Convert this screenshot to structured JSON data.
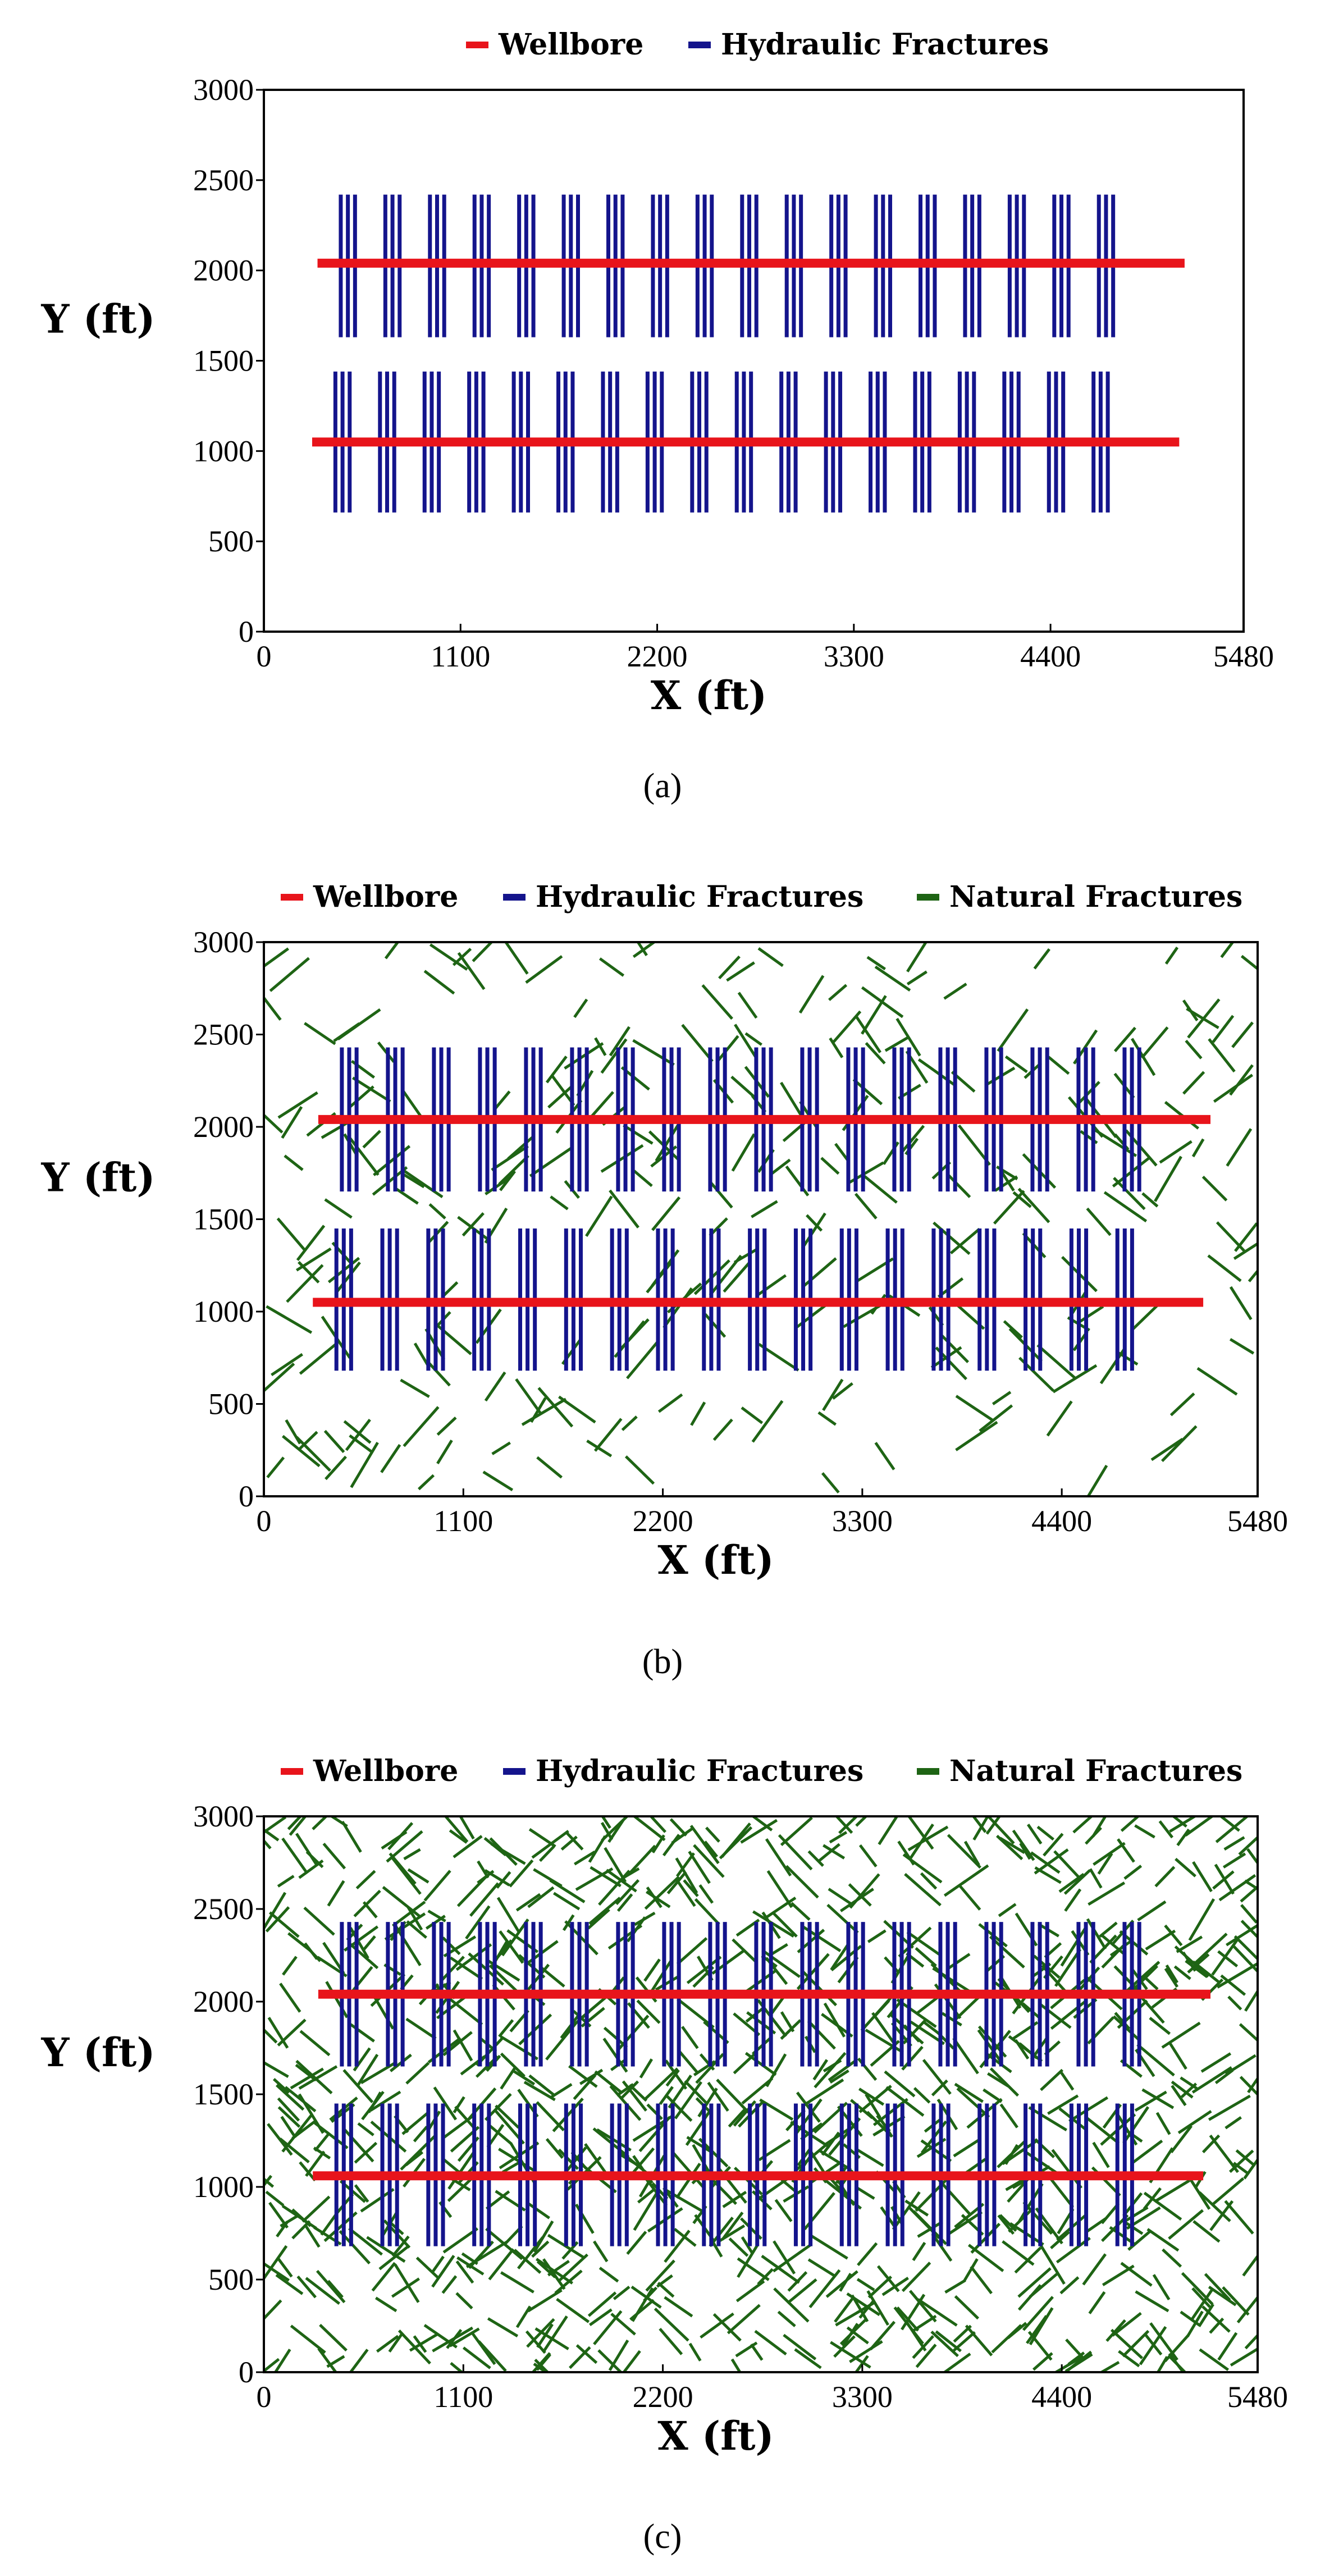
{
  "figure": {
    "captions": [
      "(a)",
      "(b)",
      "(c)"
    ]
  },
  "colors": {
    "wellbore": "#e8141b",
    "hydraulic": "#14148c",
    "natural": "#1e6414"
  },
  "chart_data": [
    {
      "type": "line",
      "panel": "a",
      "caption": "(a)",
      "xlabel": "X (ft)",
      "ylabel": "Y (ft)",
      "xlim": [
        0,
        5480
      ],
      "ylim": [
        0,
        3000
      ],
      "xticks": [
        "0",
        "1100",
        "2200",
        "3300",
        "4400",
        "5480"
      ],
      "yticks": [
        "0",
        "500",
        "1000",
        "1500",
        "2000",
        "2500",
        "3000"
      ],
      "legend": [
        "Wellbore",
        "Hydraulic Fractures"
      ],
      "wellbores": [
        {
          "y": 2040,
          "x_start": 300,
          "x_end": 5150
        },
        {
          "y": 1050,
          "x_start": 270,
          "x_end": 5120
        }
      ],
      "hydraulic_fractures": [
        {
          "y_min": 1630,
          "y_max": 2420,
          "stages": 18,
          "per_stage": 3,
          "x_start": 430,
          "x_end": 4920
        },
        {
          "y_min": 660,
          "y_max": 1440,
          "stages": 18,
          "per_stage": 3,
          "x_start": 400,
          "x_end": 4890
        }
      ],
      "natural_fracture_count": 0
    },
    {
      "type": "line",
      "panel": "b",
      "caption": "(b)",
      "xlabel": "X (ft)",
      "ylabel": "Y (ft)",
      "xlim": [
        0,
        5480
      ],
      "ylim": [
        0,
        3000
      ],
      "xticks": [
        "0",
        "1100",
        "2200",
        "3300",
        "4400",
        "5480"
      ],
      "yticks": [
        "0",
        "500",
        "1000",
        "1500",
        "2000",
        "2500",
        "3000"
      ],
      "legend": [
        "Wellbore",
        "Hydraulic Fractures",
        "Natural Fractures"
      ],
      "wellbores": [
        {
          "y": 2040,
          "x_start": 300,
          "x_end": 5220
        },
        {
          "y": 1050,
          "x_start": 270,
          "x_end": 5180
        }
      ],
      "hydraulic_fractures": [
        {
          "y_min": 1650,
          "y_max": 2430,
          "stages": 18,
          "per_stage": 3,
          "x_start": 430,
          "x_end": 5000
        },
        {
          "y_min": 680,
          "y_max": 1450,
          "stages": 18,
          "per_stage": 3,
          "x_start": 400,
          "x_end": 4960
        }
      ],
      "natural_fracture_count": 300,
      "natural_fracture_length_ft": 240,
      "random_seed": 7
    },
    {
      "type": "line",
      "panel": "c",
      "caption": "(c)",
      "xlabel": "X (ft)",
      "ylabel": "Y (ft)",
      "xlim": [
        0,
        5480
      ],
      "ylim": [
        0,
        3000
      ],
      "xticks": [
        "0",
        "1100",
        "2200",
        "3300",
        "4400",
        "5480"
      ],
      "yticks": [
        "0",
        "500",
        "1000",
        "1500",
        "2000",
        "2500",
        "3000"
      ],
      "legend": [
        "Wellbore",
        "Hydraulic Fractures",
        "Natural Fractures"
      ],
      "wellbores": [
        {
          "y": 2040,
          "x_start": 300,
          "x_end": 5220
        },
        {
          "y": 1060,
          "x_start": 270,
          "x_end": 5180
        }
      ],
      "hydraulic_fractures": [
        {
          "y_min": 1650,
          "y_max": 2430,
          "stages": 18,
          "per_stage": 3,
          "x_start": 430,
          "x_end": 5000
        },
        {
          "y_min": 680,
          "y_max": 1450,
          "stages": 18,
          "per_stage": 3,
          "x_start": 400,
          "x_end": 4960
        }
      ],
      "natural_fracture_count": 1000,
      "natural_fracture_length_ft": 220,
      "random_seed": 11
    }
  ]
}
